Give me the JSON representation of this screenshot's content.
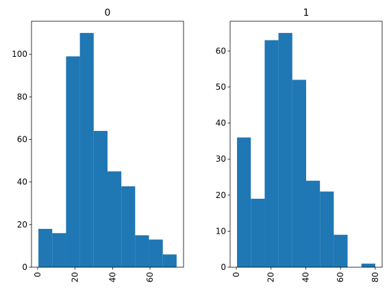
{
  "chart_data": [
    {
      "type": "bar",
      "title": "0",
      "xlabel": "",
      "ylabel": "",
      "bin_edges": [
        0.42,
        7.8,
        15.18,
        22.55,
        29.93,
        37.31,
        44.69,
        52.07,
        59.45,
        66.83,
        74.21
      ],
      "values": [
        18,
        16,
        99,
        110,
        64,
        45,
        38,
        15,
        13,
        6
      ],
      "xlim": [
        -3.27,
        77.9
      ],
      "ylim": [
        0,
        115.5
      ],
      "xticks": [
        0,
        20,
        40,
        60
      ],
      "yticks": [
        0,
        20,
        40,
        60,
        80,
        100
      ],
      "xtick_labels": [
        "0",
        "20",
        "40",
        "60"
      ],
      "ytick_labels": [
        "0",
        "20",
        "40",
        "60",
        "80",
        "100"
      ],
      "color": "#1f77b4",
      "grid": false,
      "xtick_rotation": 90
    },
    {
      "type": "bar",
      "title": "1",
      "xlabel": "",
      "ylabel": "",
      "bin_edges": [
        0.42,
        8.38,
        16.34,
        24.29,
        32.25,
        40.21,
        48.17,
        56.13,
        64.08,
        72.04,
        80.0
      ],
      "values": [
        36,
        19,
        63,
        65,
        52,
        24,
        21,
        9,
        0,
        1
      ],
      "xlim": [
        -3.56,
        83.98
      ],
      "ylim": [
        0,
        68.25
      ],
      "xticks": [
        0,
        20,
        40,
        60,
        80
      ],
      "yticks": [
        0,
        10,
        20,
        30,
        40,
        50,
        60
      ],
      "xtick_labels": [
        "0",
        "20",
        "40",
        "60",
        "80"
      ],
      "ytick_labels": [
        "0",
        "10",
        "20",
        "30",
        "40",
        "50",
        "60"
      ],
      "color": "#1f77b4",
      "grid": false,
      "xtick_rotation": 90
    }
  ]
}
